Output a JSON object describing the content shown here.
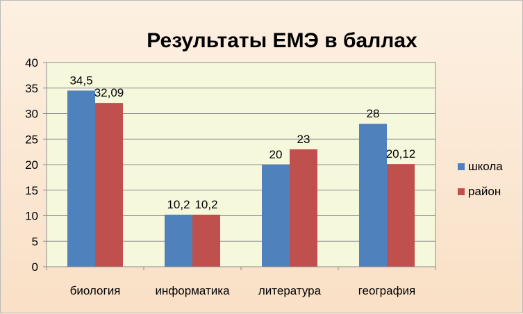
{
  "chart_data": {
    "type": "bar",
    "title": "Результаты ЕМЭ в баллах",
    "categories": [
      "биология",
      "информатика",
      "литература",
      "география"
    ],
    "series": [
      {
        "name": "школа",
        "values": [
          34.5,
          10.2,
          20,
          28
        ],
        "labels": [
          "34,5",
          "10,2",
          "20",
          "28"
        ],
        "color": "#4f81bd"
      },
      {
        "name": "район",
        "values": [
          32.09,
          10.2,
          23,
          20.12
        ],
        "labels": [
          "32,09",
          "10,2",
          "23",
          "20,12"
        ],
        "color": "#c0504d"
      }
    ],
    "ylim": [
      0,
      40
    ],
    "yticks": [
      "0",
      "5",
      "10",
      "15",
      "20",
      "25",
      "30",
      "35",
      "40"
    ],
    "grid": true,
    "legend_position": "right",
    "plot_background": "#f6f8dc"
  }
}
